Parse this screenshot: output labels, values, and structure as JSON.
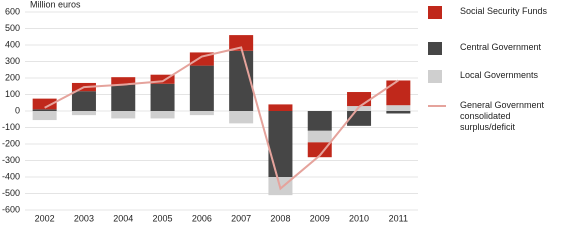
{
  "chart_data": {
    "type": "bar",
    "stacked": true,
    "y_label": "Million euros",
    "categories": [
      "2002",
      "2003",
      "2004",
      "2005",
      "2006",
      "2007",
      "2008",
      "2009",
      "2010",
      "2011"
    ],
    "series": [
      {
        "name": "Social Security Funds",
        "color": "#c0281b",
        "values": [
          65,
          50,
          45,
          55,
          80,
          95,
          40,
          -90,
          85,
          150
        ]
      },
      {
        "name": "Central Government",
        "color": "#464646",
        "values": [
          10,
          120,
          160,
          165,
          275,
          365,
          -400,
          -120,
          -90,
          -15
        ]
      },
      {
        "name": "Local Governments",
        "color": "#cfcfcf",
        "values": [
          -55,
          -25,
          -45,
          -45,
          -25,
          -75,
          -110,
          -70,
          30,
          35
        ]
      },
      {
        "name": "General Government consolidated surplus/deficit",
        "type": "line",
        "color": "#e5a39c",
        "values": [
          20,
          145,
          160,
          180,
          330,
          385,
          -470,
          -270,
          25,
          185
        ]
      }
    ],
    "ylim": [
      -600,
      600
    ],
    "yticks": [
      -600,
      -500,
      -400,
      -300,
      -200,
      -100,
      0,
      100,
      200,
      300,
      400,
      500,
      600
    ],
    "grid": true
  }
}
